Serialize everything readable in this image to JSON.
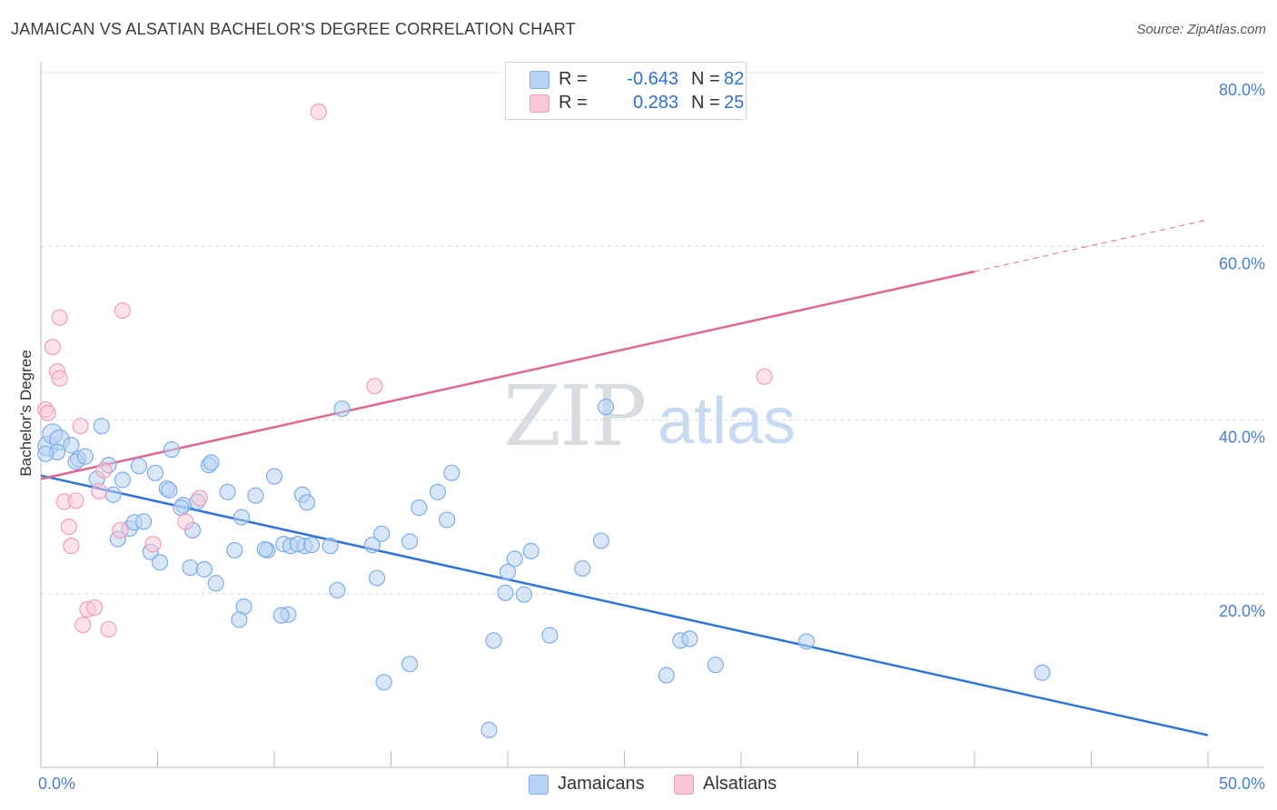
{
  "title": "JAMAICAN VS ALSATIAN BACHELOR'S DEGREE CORRELATION CHART",
  "source": "Source: ZipAtlas.com",
  "watermark": {
    "zip": "ZIP",
    "atlas": "atlas"
  },
  "colors": {
    "blue_fill": "#b8d2f3",
    "blue_stroke": "#7faee8",
    "blue_line": "#2f74d6",
    "pink_fill": "#f9c8d6",
    "pink_stroke": "#ee9fb7",
    "pink_line": "#e0688f",
    "tick_text": "#4a7fcf",
    "grid": "#d8dce2"
  },
  "legend": {
    "rows": [
      {
        "r_label": "R =",
        "r_value": "-0.643",
        "n_label": "N =",
        "n_value": "82",
        "series": "blue"
      },
      {
        "r_label": "R =",
        "r_value": "0.283",
        "n_label": "N =",
        "n_value": "25",
        "series": "pink"
      }
    ]
  },
  "bottom_legend": [
    "Jamaicans",
    "Alsatians"
  ],
  "chart_data": {
    "type": "scatter",
    "title": "JAMAICAN VS ALSATIAN BACHELOR'S DEGREE CORRELATION CHART",
    "xlabel": "",
    "ylabel": "Bachelor's Degree",
    "xlim": [
      0,
      50
    ],
    "ylim": [
      0,
      80
    ],
    "x_tick_labels": [
      "0.0%",
      "50.0%"
    ],
    "y_tick_values": [
      20,
      40,
      60,
      80
    ],
    "y_tick_labels": [
      "20.0%",
      "40.0%",
      "60.0%",
      "80.0%"
    ],
    "grid": true,
    "series": [
      {
        "name": "Jamaicans",
        "color": "blue",
        "points": [
          [
            0.3,
            37
          ],
          [
            0.5,
            38.4
          ],
          [
            0.8,
            37.7
          ],
          [
            0.7,
            36.3
          ],
          [
            1.6,
            35.5
          ],
          [
            1.5,
            35.2
          ],
          [
            1.3,
            37.1
          ],
          [
            1.9,
            35.8
          ],
          [
            2.6,
            39.3
          ],
          [
            2.4,
            33.2
          ],
          [
            2.9,
            34.8
          ],
          [
            3.5,
            33.1
          ],
          [
            3.1,
            31.4
          ],
          [
            4.2,
            34.7
          ],
          [
            4.9,
            33.9
          ],
          [
            5.6,
            36.6
          ],
          [
            5.4,
            32.1
          ],
          [
            5.5,
            31.9
          ],
          [
            6.1,
            30.2
          ],
          [
            6.0,
            29.9
          ],
          [
            7.2,
            34.8
          ],
          [
            7.3,
            35.1
          ],
          [
            6.7,
            30.6
          ],
          [
            8.0,
            31.7
          ],
          [
            8.6,
            28.8
          ],
          [
            9.2,
            31.3
          ],
          [
            10.0,
            33.5
          ],
          [
            11.2,
            31.4
          ],
          [
            11.4,
            30.5
          ],
          [
            12.9,
            41.3
          ],
          [
            9.7,
            25.0
          ],
          [
            3.3,
            26.3
          ],
          [
            3.8,
            27.5
          ],
          [
            4.0,
            28.2
          ],
          [
            4.4,
            28.3
          ],
          [
            4.7,
            24.8
          ],
          [
            5.1,
            23.6
          ],
          [
            6.5,
            27.3
          ],
          [
            6.4,
            23.0
          ],
          [
            7.0,
            22.8
          ],
          [
            7.5,
            21.2
          ],
          [
            8.3,
            25.0
          ],
          [
            8.7,
            18.5
          ],
          [
            8.5,
            17.0
          ],
          [
            9.6,
            25.1
          ],
          [
            10.4,
            25.7
          ],
          [
            10.7,
            25.5
          ],
          [
            11.3,
            25.5
          ],
          [
            11.0,
            25.7
          ],
          [
            11.6,
            25.6
          ],
          [
            12.4,
            25.5
          ],
          [
            12.7,
            20.4
          ],
          [
            14.2,
            25.6
          ],
          [
            14.6,
            26.9
          ],
          [
            14.4,
            21.8
          ],
          [
            15.8,
            26.0
          ],
          [
            16.2,
            29.9
          ],
          [
            17.0,
            31.7
          ],
          [
            17.4,
            28.5
          ],
          [
            17.6,
            33.9
          ],
          [
            10.6,
            17.6
          ],
          [
            10.3,
            17.5
          ],
          [
            14.7,
            9.8
          ],
          [
            15.8,
            11.9
          ],
          [
            19.4,
            14.6
          ],
          [
            19.9,
            20.1
          ],
          [
            20.0,
            22.5
          ],
          [
            20.3,
            24.0
          ],
          [
            20.7,
            19.9
          ],
          [
            21.0,
            24.9
          ],
          [
            21.8,
            15.2
          ],
          [
            23.2,
            22.9
          ],
          [
            24.0,
            26.1
          ],
          [
            24.2,
            41.5
          ],
          [
            26.8,
            10.6
          ],
          [
            27.4,
            14.6
          ],
          [
            27.8,
            14.8
          ],
          [
            28.9,
            11.8
          ],
          [
            32.8,
            14.5
          ],
          [
            42.9,
            10.9
          ],
          [
            19.2,
            4.3
          ],
          [
            0.2,
            36.1
          ]
        ]
      },
      {
        "name": "Alsatians",
        "color": "pink",
        "points": [
          [
            0.2,
            41.2
          ],
          [
            0.3,
            40.8
          ],
          [
            0.5,
            48.4
          ],
          [
            0.7,
            45.6
          ],
          [
            0.8,
            44.8
          ],
          [
            0.8,
            51.8
          ],
          [
            1.0,
            30.6
          ],
          [
            1.2,
            27.7
          ],
          [
            1.3,
            25.5
          ],
          [
            1.5,
            30.7
          ],
          [
            1.7,
            39.3
          ],
          [
            1.8,
            16.4
          ],
          [
            2.0,
            18.2
          ],
          [
            2.3,
            18.4
          ],
          [
            2.5,
            31.8
          ],
          [
            2.7,
            34.2
          ],
          [
            2.9,
            15.9
          ],
          [
            3.4,
            27.3
          ],
          [
            3.5,
            52.6
          ],
          [
            4.8,
            25.7
          ],
          [
            6.2,
            28.3
          ],
          [
            6.8,
            31.0
          ],
          [
            11.9,
            75.5
          ],
          [
            14.3,
            43.9
          ],
          [
            31.0,
            45.0
          ]
        ]
      }
    ],
    "trend_lines": [
      {
        "series": "Jamaicans",
        "x": [
          0,
          50
        ],
        "y": [
          33.6,
          3.7
        ],
        "style": "solid"
      },
      {
        "series": "Alsatians",
        "x": [
          0,
          40
        ],
        "y": [
          33.2,
          57.1
        ],
        "style": "solid"
      },
      {
        "series": "Alsatians",
        "x": [
          40,
          49.9
        ],
        "y": [
          57.1,
          63.0
        ],
        "style": "dashed"
      }
    ]
  }
}
